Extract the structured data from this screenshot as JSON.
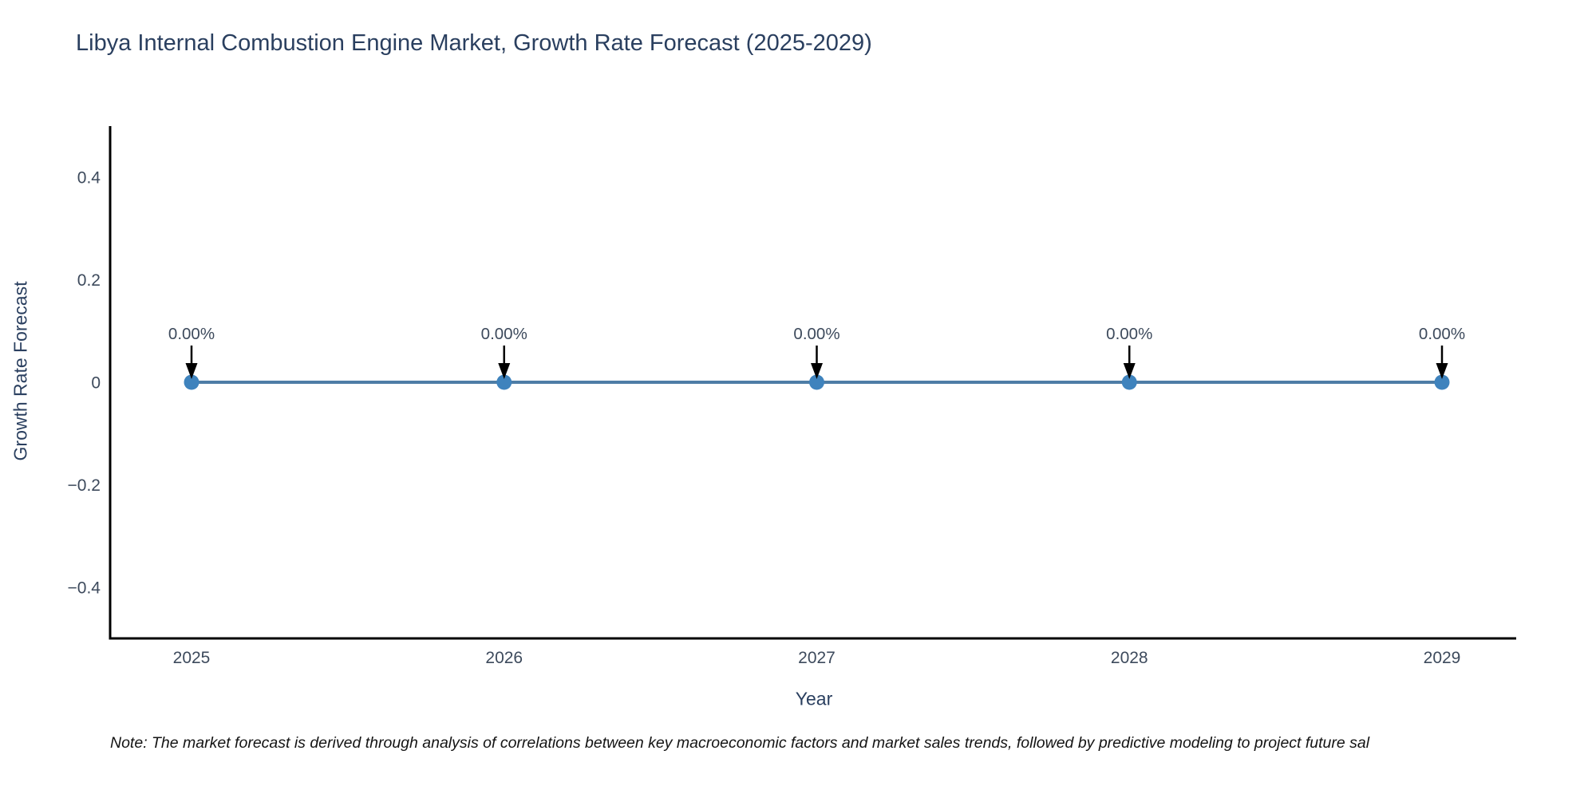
{
  "page": {
    "title": "Libya Internal Combustion Engine Market, Growth Rate Forecast (2025-2029)",
    "note": "Note: The market forecast is derived through analysis of correlations between key macroeconomic factors and market sales trends, followed by predictive modeling to project future sal"
  },
  "chart_data": {
    "type": "line",
    "title": "Libya Internal Combustion Engine Market, Growth Rate Forecast (2025-2029)",
    "xlabel": "Year",
    "ylabel": "Growth Rate Forecast",
    "categories": [
      "2025",
      "2026",
      "2027",
      "2028",
      "2029"
    ],
    "series": [
      {
        "name": "Growth Rate Forecast",
        "values": [
          0,
          0,
          0,
          0,
          0
        ],
        "point_labels": [
          "0.00%",
          "0.00%",
          "0.00%",
          "0.00%",
          "0.00%"
        ]
      }
    ],
    "ylim": [
      -0.5,
      0.5
    ],
    "yticks": [
      {
        "value": 0.4,
        "label": "0.4"
      },
      {
        "value": 0.2,
        "label": "0.2"
      },
      {
        "value": 0,
        "label": "0"
      },
      {
        "value": -0.2,
        "label": "−0.2"
      },
      {
        "value": -0.4,
        "label": "−0.4"
      }
    ],
    "grid": false,
    "legend_position": "none",
    "annotation_style": "arrow-down-to-point"
  },
  "colors": {
    "background": "#ffffff",
    "title_text": "#2a3f5f",
    "axis_text": "#3d4a5c",
    "axis_line": "#000000",
    "series_line": "#4e7da6",
    "marker_fill": "#3f83bd",
    "arrow": "#000000",
    "note_text": "#141414"
  }
}
